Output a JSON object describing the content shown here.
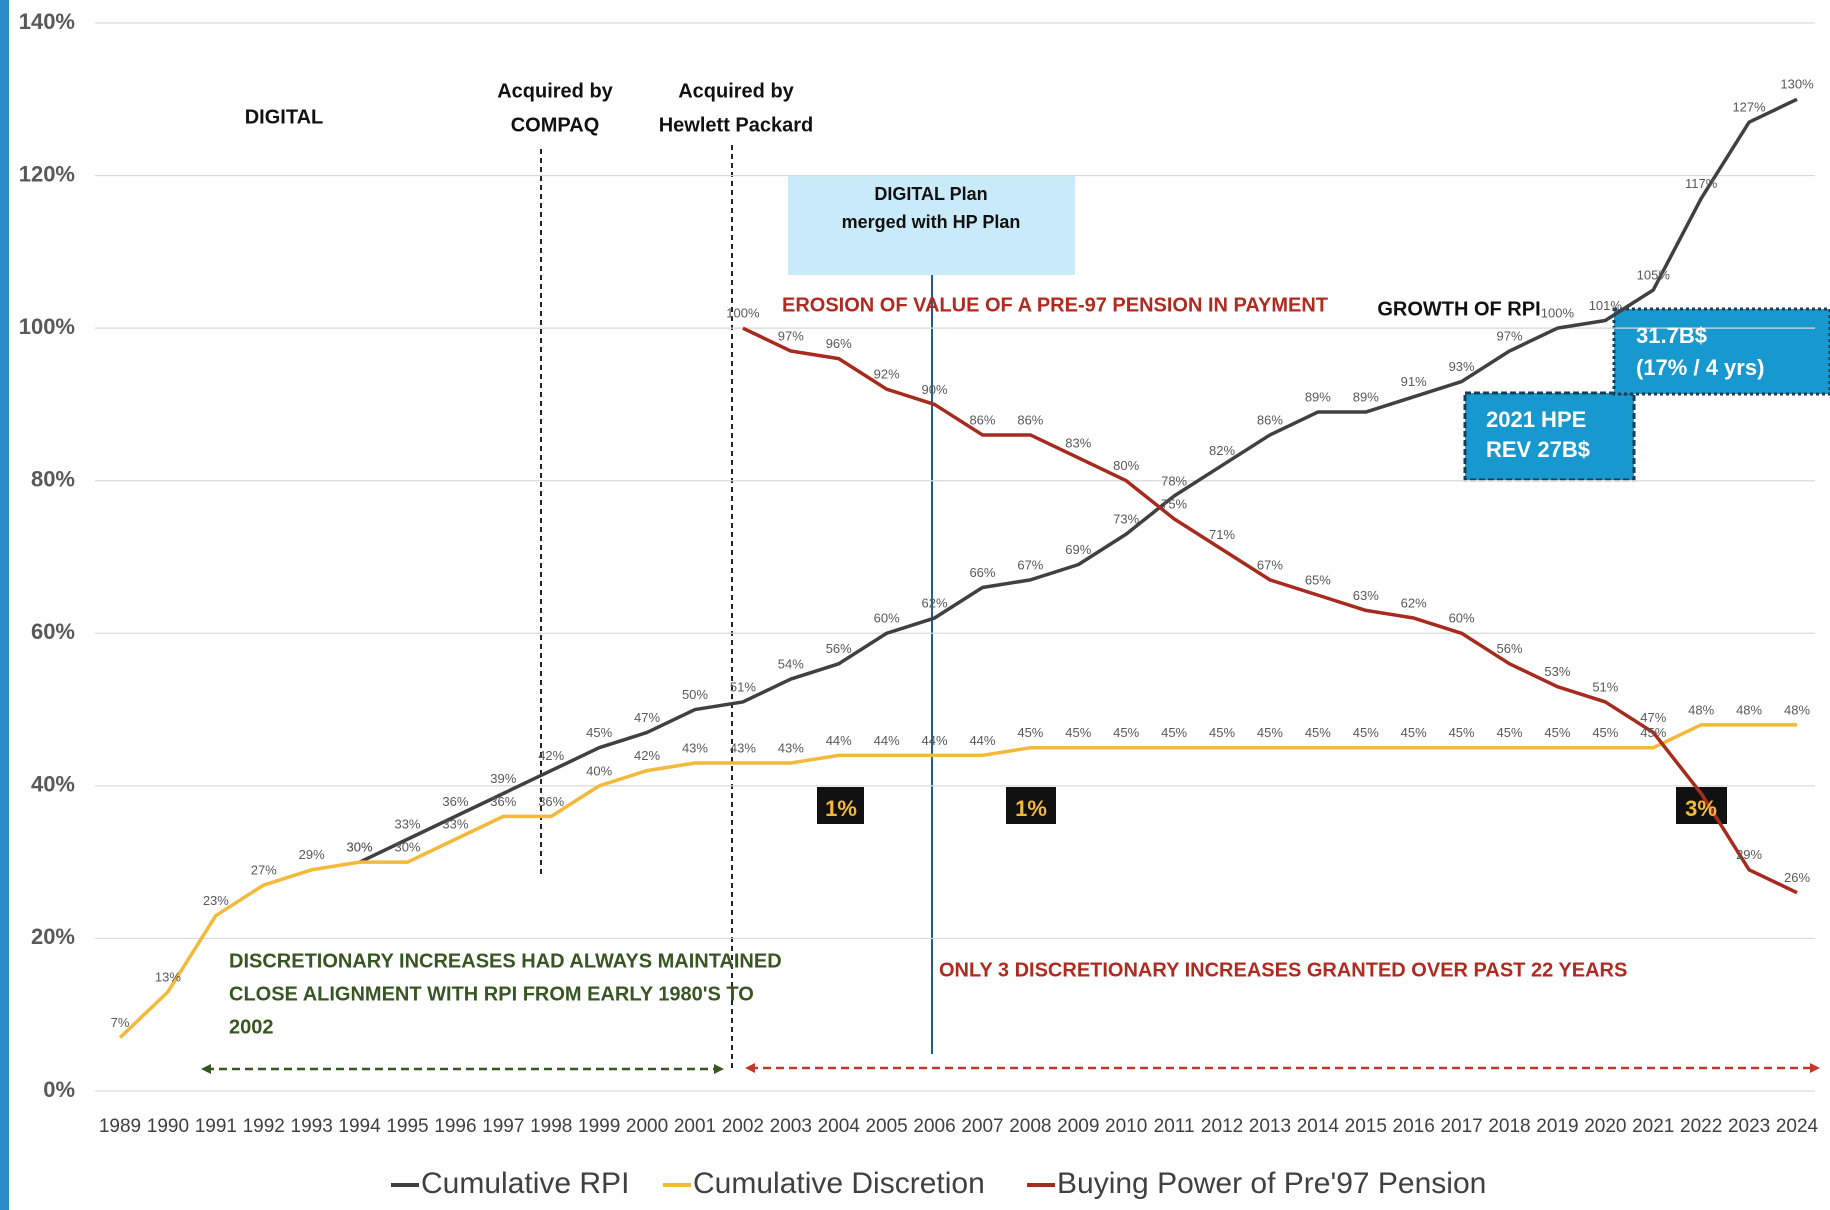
{
  "chart_data": {
    "type": "line",
    "categories": [
      "1989",
      "1990",
      "1991",
      "1992",
      "1993",
      "1994",
      "1995",
      "1996",
      "1997",
      "1998",
      "1999",
      "2000",
      "2001",
      "2002",
      "2003",
      "2004",
      "2005",
      "2006",
      "2007",
      "2008",
      "2009",
      "2010",
      "2011",
      "2012",
      "2013",
      "2014",
      "2015",
      "2016",
      "2017",
      "2018",
      "2019",
      "2020",
      "2021",
      "2022",
      "2023",
      "2024"
    ],
    "ylim": [
      0,
      140
    ],
    "yticks": [
      {
        "value": 0,
        "label": "0%"
      },
      {
        "value": 20,
        "label": "20%"
      },
      {
        "value": 40,
        "label": "40%"
      },
      {
        "value": 60,
        "label": "60%"
      },
      {
        "value": 80,
        "label": "80%"
      },
      {
        "value": 100,
        "label": "100%"
      },
      {
        "value": 120,
        "label": "120%"
      },
      {
        "value": 140,
        "label": "140%"
      }
    ],
    "grid": true,
    "series": [
      {
        "name": "Cumulative RPI",
        "color": "#404040",
        "values": [
          null,
          null,
          null,
          null,
          null,
          30,
          33,
          36,
          39,
          42,
          45,
          47,
          50,
          51,
          54,
          56,
          60,
          62,
          66,
          67,
          69,
          73,
          78,
          82,
          86,
          89,
          89,
          91,
          93,
          97,
          100,
          101,
          105,
          117,
          127,
          130
        ],
        "value_labels": [
          null,
          null,
          null,
          null,
          null,
          "30%",
          "33%",
          "36%",
          "39%",
          "42%",
          "45%",
          "47%",
          "50%",
          "51%",
          "54%",
          "56%",
          "60%",
          "62%",
          "66%",
          "67%",
          "69%",
          "73%",
          "78%",
          "82%",
          "86%",
          "89%",
          "89%",
          "91%",
          "93%",
          "97%",
          "100%",
          "101%",
          "105%",
          "117%",
          "127%",
          "130%"
        ]
      },
      {
        "name": "Cumulative Discretion",
        "color": "#f2b93b",
        "values": [
          7,
          13,
          23,
          27,
          29,
          30,
          30,
          33,
          36,
          36,
          40,
          42,
          43,
          43,
          43,
          44,
          44,
          44,
          44,
          45,
          45,
          45,
          45,
          45,
          45,
          45,
          45,
          45,
          45,
          45,
          45,
          45,
          45,
          48,
          48,
          48
        ],
        "value_labels": [
          "7%",
          "13%",
          "23%",
          "27%",
          "29%",
          "30%",
          "30%",
          "33%",
          "36%",
          "36%",
          "40%",
          "42%",
          "43%",
          "43%",
          "43%",
          "44%",
          "44%",
          "44%",
          "44%",
          "45%",
          "45%",
          "45%",
          "45%",
          "45%",
          "45%",
          "45%",
          "45%",
          "45%",
          "45%",
          "45%",
          "45%",
          "45%",
          "45%",
          "48%",
          "48%",
          "48%"
        ]
      },
      {
        "name": "Buying Power of Pre'97 Pension",
        "color": "#a62a1e",
        "values": [
          null,
          null,
          null,
          null,
          null,
          null,
          null,
          null,
          null,
          null,
          null,
          null,
          null,
          100,
          97,
          96,
          92,
          90,
          86,
          86,
          83,
          80,
          75,
          71,
          67,
          65,
          63,
          62,
          60,
          56,
          53,
          51,
          47,
          39,
          29,
          26
        ],
        "value_labels": [
          null,
          null,
          null,
          null,
          null,
          null,
          null,
          null,
          null,
          null,
          null,
          null,
          null,
          "100%",
          "97%",
          "96%",
          "92%",
          "90%",
          "86%",
          "86%",
          "83%",
          "80%",
          "75%",
          "71%",
          "67%",
          "65%",
          "63%",
          "62%",
          "60%",
          "56%",
          "53%",
          "51%",
          "47%",
          null,
          "29%",
          "26%"
        ]
      }
    ],
    "annotations": [
      {
        "lines": [
          "DIGITAL"
        ]
      },
      {
        "lines": [
          "Acquired by",
          "COMPAQ"
        ]
      },
      {
        "lines": [
          "Acquired by",
          "Hewlett Packard"
        ]
      },
      {
        "lines": [
          "DIGITAL Plan",
          "merged with HP Plan"
        ]
      },
      {
        "lines": [
          "EROSION OF VALUE OF A PRE-97 PENSION IN PAYMENT"
        ]
      },
      {
        "lines": [
          "GROWTH OF RPI"
        ]
      },
      {
        "lines": [
          "31.7B$",
          "(17% / 4 yrs)"
        ]
      },
      {
        "lines": [
          "2021 HPE",
          "REV 27B$"
        ]
      },
      {
        "lines": [
          "DISCRETIONARY INCREASES HAD ALWAYS MAINTAINED",
          "CLOSE ALIGNMENT WITH RPI FROM EARLY 1980'S TO",
          "2002"
        ]
      },
      {
        "lines": [
          "ONLY 3 DISCRETIONARY INCREASES GRANTED OVER PAST 22 YEARS"
        ]
      },
      {
        "lines": [
          "1%"
        ]
      },
      {
        "lines": [
          "1%"
        ]
      },
      {
        "lines": [
          "3%"
        ]
      }
    ]
  }
}
